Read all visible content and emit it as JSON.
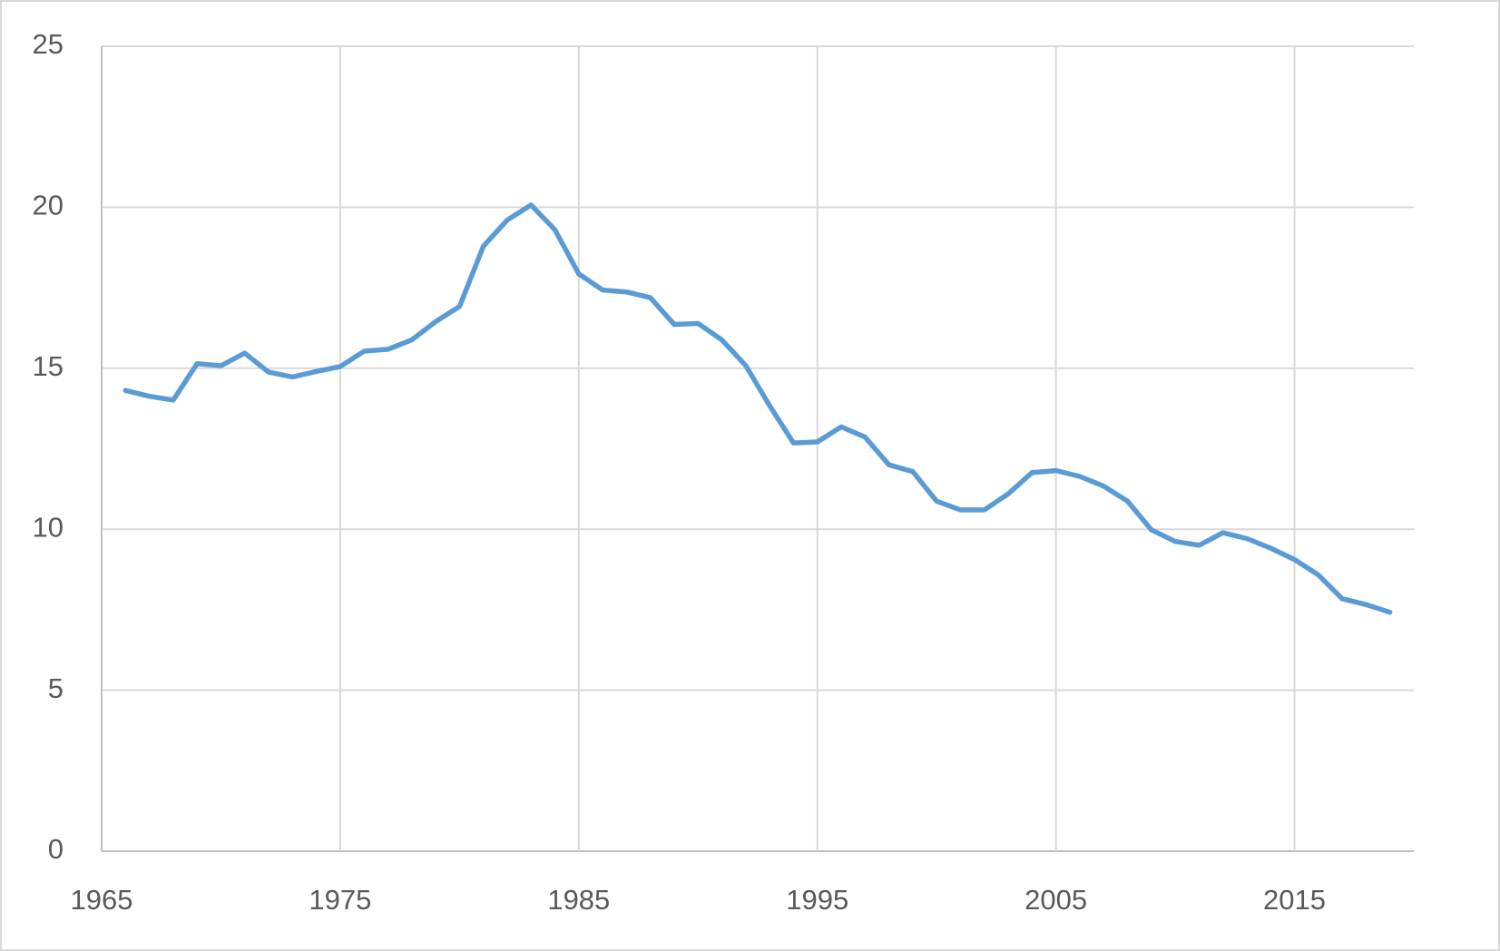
{
  "chart_data": {
    "type": "line",
    "x": [
      1966,
      1967,
      1968,
      1969,
      1970,
      1971,
      1972,
      1973,
      1974,
      1975,
      1976,
      1977,
      1978,
      1979,
      1980,
      1981,
      1982,
      1983,
      1984,
      1985,
      1986,
      1987,
      1988,
      1989,
      1990,
      1991,
      1992,
      1993,
      1994,
      1995,
      1996,
      1997,
      1998,
      1999,
      2000,
      2001,
      2002,
      2003,
      2004,
      2005,
      2006,
      2007,
      2008,
      2009,
      2010,
      2011,
      2012,
      2013,
      2014,
      2015,
      2016,
      2017,
      2018,
      2019
    ],
    "series": [
      {
        "color": "#5b9bd5",
        "values": [
          14.31,
          14.13,
          14.01,
          15.14,
          15.08,
          15.47,
          14.88,
          14.73,
          14.9,
          15.05,
          15.53,
          15.59,
          15.88,
          16.45,
          16.92,
          18.79,
          19.6,
          20.07,
          19.3,
          17.93,
          17.43,
          17.37,
          17.19,
          16.36,
          16.39,
          15.88,
          15.08,
          13.84,
          12.68,
          12.71,
          13.18,
          12.86,
          12.0,
          11.79,
          10.87,
          10.6,
          10.6,
          11.1,
          11.76,
          11.82,
          11.64,
          11.34,
          10.87,
          9.98,
          9.62,
          9.5,
          9.89,
          9.71,
          9.41,
          9.06,
          8.58,
          7.84,
          7.66,
          7.42
        ]
      }
    ],
    "xlim": [
      1965,
      2020
    ],
    "xticks": [
      1965,
      1975,
      1985,
      1995,
      2005,
      2015
    ],
    "ylim": [
      0,
      25
    ],
    "yticks": [
      0,
      5,
      10,
      15,
      20,
      25
    ],
    "grid": true
  }
}
